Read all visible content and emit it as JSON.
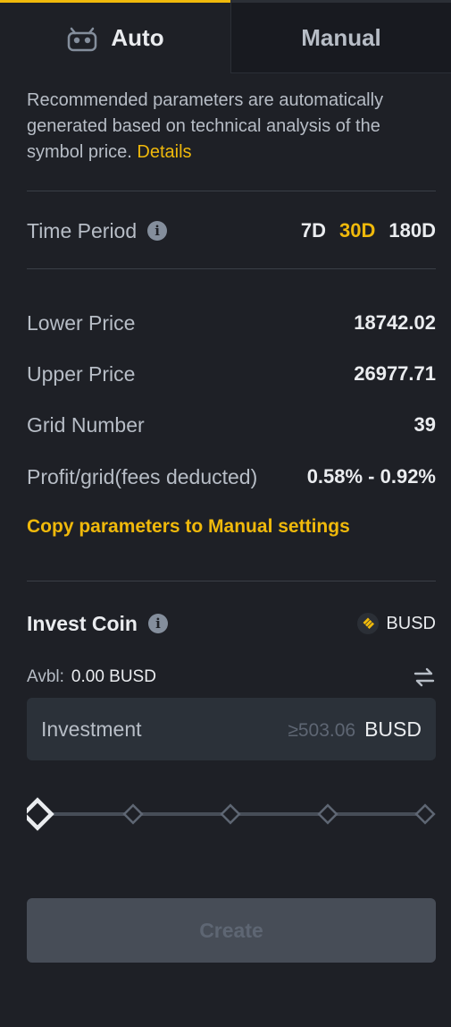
{
  "tabs": {
    "auto_label": "Auto",
    "manual_label": "Manual"
  },
  "description": {
    "text": "Recommended parameters are automatically generated based on technical analysis of the symbol price. ",
    "link": "Details"
  },
  "time_period": {
    "label": "Time Period",
    "options": [
      "7D",
      "30D",
      "180D"
    ],
    "selected": "30D"
  },
  "params": {
    "lower_price_label": "Lower Price",
    "lower_price_value": "18742.02",
    "upper_price_label": "Upper Price",
    "upper_price_value": "26977.71",
    "grid_number_label": "Grid Number",
    "grid_number_value": "39",
    "profit_label": "Profit/grid(fees deducted)",
    "profit_value": "0.58% - 0.92%"
  },
  "copy_link": "Copy parameters to Manual settings",
  "invest": {
    "title": "Invest Coin",
    "coin": "BUSD",
    "avbl_label": "Avbl:",
    "avbl_value": "0.00 BUSD",
    "input_label": "Investment",
    "input_placeholder": "≥503.06",
    "input_unit": "BUSD",
    "slider_fraction": 0
  },
  "create_label": "Create",
  "colors": {
    "accent": "#f0b90b",
    "background": "#1e2026",
    "muted_text": "#b7bdc6",
    "input_bg": "#2b3139",
    "disabled_button": "#474d57"
  },
  "icons": {
    "auto_tab": "robot-icon",
    "info": "info-icon",
    "coin": "busd-icon",
    "swap": "swap-arrows-icon"
  }
}
